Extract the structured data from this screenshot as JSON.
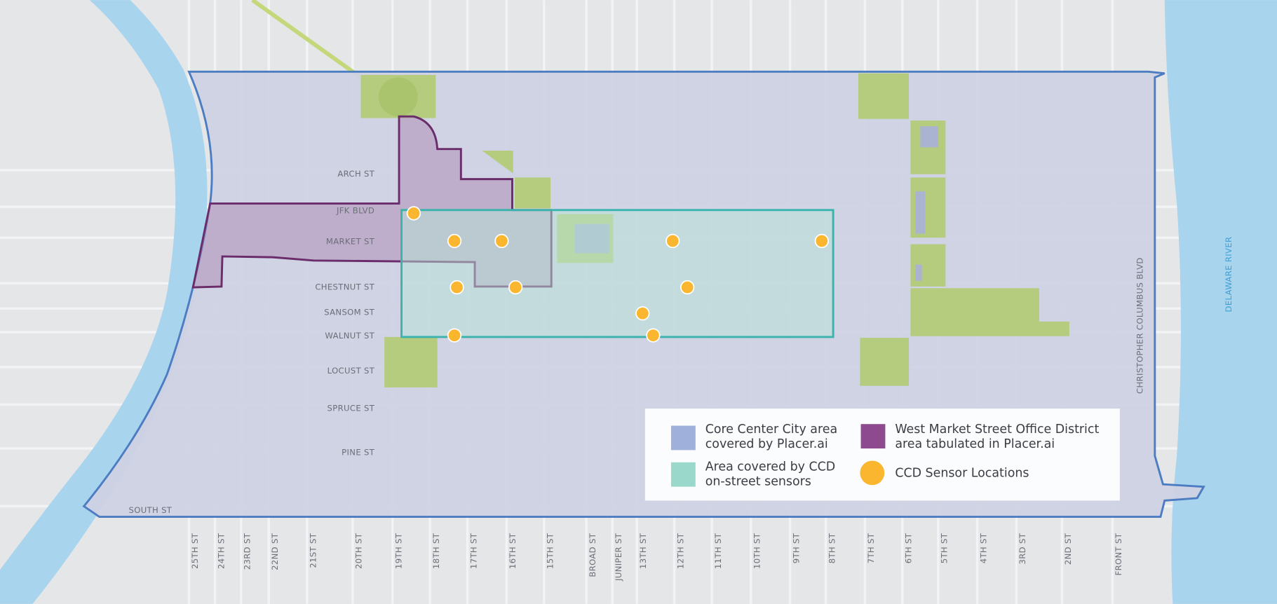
{
  "map": {
    "east_west_streets": [
      "ARCH ST",
      "JFK BLVD",
      "MARKET ST",
      "CHESTNUT ST",
      "SANSOM ST",
      "WALNUT ST",
      "LOCUST ST",
      "SPRUCE ST",
      "PINE ST",
      "SOUTH ST"
    ],
    "north_south_streets": [
      "25TH ST",
      "24TH ST",
      "23RD ST",
      "22ND ST",
      "21ST ST",
      "20TH ST",
      "19TH ST",
      "18TH ST",
      "17TH ST",
      "16TH ST",
      "15TH ST",
      "BROAD ST",
      "JUNIPER ST",
      "13TH ST",
      "12TH ST",
      "11TH ST",
      "10TH ST",
      "9TH ST",
      "8TH ST",
      "7TH ST",
      "6TH ST",
      "5TH ST",
      "4TH ST",
      "3RD ST",
      "2ND ST",
      "FRONT ST"
    ],
    "road_label": "CHRISTOPHER COLUMBUS BLVD",
    "water_label": "DELAWARE RIVER"
  },
  "legend": [
    {
      "lines": [
        "Core Center City area",
        "covered by Placer.ai"
      ]
    },
    {
      "lines": [
        "West Market Street Office District",
        "area tabulated in Placer.ai"
      ]
    },
    {
      "lines": [
        "Area covered by CCD",
        "on-street sensors"
      ]
    },
    {
      "lines": [
        "CCD Sensor Locations"
      ]
    }
  ]
}
